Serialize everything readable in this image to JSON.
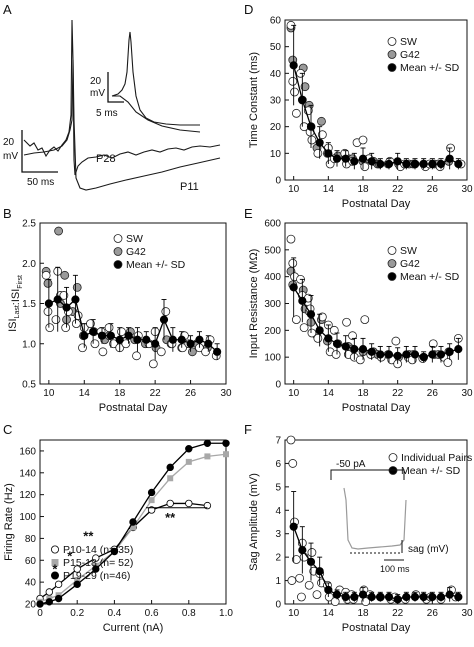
{
  "panel_letters": {
    "A": "A",
    "B": "B",
    "C": "C",
    "D": "D",
    "E": "E",
    "F": "F"
  },
  "colors": {
    "sw": "#ffffff",
    "g42": "#9a9a9a",
    "mean": "#000000",
    "p15": "#a8a8a8",
    "trace": "#1a1a1a"
  },
  "panel_a": {
    "scale_main_v": "20",
    "scale_main_v_unit": "mV",
    "scale_main_t": "50 ms",
    "scale_inset_v": "20",
    "scale_inset_v_unit": "mV",
    "scale_inset_t": "5 ms",
    "label_p28": "P28",
    "label_p11": "P11"
  },
  "panel_f_inset": {
    "current": "-50 pA",
    "sag": "sag (mV)",
    "time": "100 ms"
  },
  "chart_data": [
    {
      "id": "B",
      "type": "scatter",
      "xlabel": "Postnatal Day",
      "ylabel_main": "ISI",
      "ylabel_sub1": "Last",
      "ylabel_mid": ":ISI",
      "ylabel_sub2": "First",
      "xlim": [
        9,
        30
      ],
      "ylim": [
        0.5,
        2.5
      ],
      "xticks": [
        10,
        14,
        18,
        22,
        26,
        30
      ],
      "yticks": [
        0.5,
        1.0,
        1.5,
        2.0,
        2.5
      ],
      "yticklabels": [
        "0.5",
        "1.0",
        "1.5",
        "2.0",
        "2.5"
      ],
      "legend": [
        "SW",
        "G42",
        "Mean +/- SD"
      ],
      "mean": {
        "x": [
          10,
          11,
          12,
          13,
          14,
          15,
          16,
          17,
          18,
          19,
          20,
          21,
          22,
          23,
          24,
          25,
          26,
          27,
          28,
          29
        ],
        "y": [
          1.5,
          1.55,
          1.45,
          1.55,
          1.1,
          1.15,
          1.1,
          1.1,
          1.05,
          1.1,
          1.05,
          1.05,
          1.0,
          1.3,
          1.05,
          1.05,
          1.0,
          1.05,
          1.0,
          0.9
        ],
        "sd": [
          0.3,
          0.4,
          0.25,
          0.3,
          0.15,
          0.15,
          0.1,
          0.15,
          0.15,
          0.1,
          0.15,
          0.1,
          0.2,
          0.25,
          0.15,
          0.1,
          0.1,
          0.1,
          0.1,
          0.1
        ]
      },
      "sw": {
        "x": [
          10,
          10,
          10,
          11,
          11,
          11,
          12,
          12,
          12,
          13,
          13,
          14,
          14,
          15,
          15,
          16,
          16,
          17,
          17,
          18,
          18,
          19,
          20,
          20,
          21,
          22,
          22,
          23,
          23,
          24,
          25,
          25,
          26,
          27,
          28,
          28,
          29
        ],
        "y": [
          1.85,
          1.4,
          1.2,
          1.6,
          1.3,
          1.9,
          1.4,
          1.6,
          1.2,
          1.25,
          1.35,
          0.95,
          1.2,
          1.0,
          1.25,
          1.15,
          0.9,
          1.0,
          1.2,
          0.95,
          1.15,
          1.0,
          0.85,
          1.1,
          1.0,
          0.75,
          1.15,
          1.4,
          0.9,
          1.0,
          0.95,
          1.1,
          1.0,
          0.95,
          1.05,
          0.9,
          0.85
        ]
      },
      "g42": {
        "x": [
          10,
          10,
          11,
          11,
          12,
          12,
          13,
          13,
          14,
          15,
          16,
          17,
          18,
          19,
          20,
          21,
          22,
          23,
          24,
          25,
          26,
          27,
          28
        ],
        "y": [
          1.9,
          1.75,
          2.4,
          1.5,
          1.85,
          1.3,
          1.7,
          1.4,
          1.1,
          1.15,
          1.05,
          1.1,
          1.0,
          1.15,
          1.05,
          1.0,
          0.95,
          1.05,
          1.0,
          0.95,
          0.9,
          1.0,
          0.95
        ]
      }
    },
    {
      "id": "C",
      "type": "line",
      "xlabel": "Current (nA)",
      "ylabel": "Firing Rate (Hz)",
      "xlim": [
        0,
        1.0
      ],
      "ylim": [
        20,
        170
      ],
      "xticks": [
        0,
        0.2,
        0.4,
        0.6,
        0.8,
        1.0
      ],
      "yticks": [
        20,
        40,
        60,
        80,
        100,
        120,
        140,
        160
      ],
      "xticklabels": [
        "0",
        "0.2",
        "0.4",
        "0.6",
        "0.8",
        "1.0"
      ],
      "yticklabels": [
        "20",
        "40",
        "60",
        "80",
        "100",
        "120",
        "140",
        "160"
      ],
      "annotations": [
        "*",
        "*",
        "**",
        "**"
      ],
      "series": [
        {
          "name": "P10-14 (n= 35)",
          "x": [
            0.0,
            0.05,
            0.1,
            0.2,
            0.3,
            0.4,
            0.5,
            0.6,
            0.7,
            0.8,
            0.9
          ],
          "y": [
            25,
            31,
            38,
            52,
            62,
            70,
            90,
            106,
            112,
            112,
            110
          ]
        },
        {
          "name": "P15-18 (n= 52)",
          "x": [
            0.0,
            0.05,
            0.1,
            0.2,
            0.3,
            0.4,
            0.5,
            0.6,
            0.7,
            0.8,
            0.9,
            1.0
          ],
          "y": [
            22,
            25,
            28,
            42,
            55,
            68,
            90,
            115,
            135,
            150,
            155,
            157
          ]
        },
        {
          "name": "P19-29 (n=46)",
          "x": [
            0.0,
            0.05,
            0.1,
            0.2,
            0.3,
            0.4,
            0.5,
            0.6,
            0.7,
            0.8,
            0.9,
            1.0
          ],
          "y": [
            20,
            22,
            25,
            38,
            52,
            68,
            95,
            122,
            145,
            162,
            167,
            167
          ]
        }
      ]
    },
    {
      "id": "D",
      "type": "scatter",
      "xlabel": "Postnatal Day",
      "ylabel": "Time Constant (ms)",
      "xlim": [
        9,
        30
      ],
      "ylim": [
        0,
        60
      ],
      "xticks": [
        10,
        14,
        18,
        22,
        26,
        30
      ],
      "yticks": [
        0,
        10,
        20,
        30,
        40,
        50,
        60
      ],
      "yticklabels": [
        "0",
        "10",
        "20",
        "30",
        "40",
        "50",
        "60"
      ],
      "legend": [
        "SW",
        "G42",
        "Mean +/- SD"
      ],
      "mean": {
        "x": [
          10,
          11,
          12,
          13,
          14,
          15,
          16,
          17,
          18,
          19,
          20,
          21,
          22,
          23,
          24,
          25,
          26,
          27,
          28,
          29
        ],
        "y": [
          43,
          30,
          20,
          14,
          10,
          8,
          8,
          7,
          8,
          7,
          6,
          6,
          7,
          6,
          6,
          6,
          6,
          6,
          8,
          6
        ],
        "sd": [
          15,
          10,
          8,
          6,
          4,
          3,
          3,
          3,
          4,
          3,
          2,
          2,
          3,
          2,
          2,
          2,
          2,
          2,
          4,
          2
        ]
      },
      "sw": {
        "x": [
          10,
          10,
          10,
          10,
          11,
          11,
          11,
          12,
          12,
          12,
          13,
          13,
          14,
          14,
          15,
          16,
          16,
          17,
          17,
          18,
          18,
          19,
          20,
          21,
          22,
          23,
          24,
          25,
          26,
          27,
          28,
          29
        ],
        "y": [
          58,
          37,
          33,
          25,
          40,
          30,
          20,
          26,
          18,
          15,
          17,
          10,
          12,
          6,
          8,
          10,
          6,
          14,
          7,
          15,
          5,
          8,
          6,
          7,
          5,
          6,
          6,
          5,
          6,
          5,
          12,
          6
        ]
      },
      "g42": {
        "x": [
          10,
          10,
          11,
          11,
          12,
          12,
          13,
          13,
          14,
          15,
          16,
          17,
          18,
          19,
          20,
          21,
          22,
          23,
          24,
          25,
          26,
          27,
          28
        ],
        "y": [
          57,
          45,
          42,
          35,
          28,
          20,
          22,
          12,
          10,
          9,
          8,
          8,
          7,
          7,
          6,
          6,
          6,
          6,
          6,
          6,
          6,
          6,
          7
        ]
      }
    },
    {
      "id": "E",
      "type": "scatter",
      "xlabel": "Postnatal Day",
      "ylabel": "Input Resistance (MΩ)",
      "xlim": [
        9,
        30
      ],
      "ylim": [
        0,
        600
      ],
      "xticks": [
        10,
        14,
        18,
        22,
        26,
        30
      ],
      "yticks": [
        0,
        100,
        200,
        300,
        400,
        500,
        600
      ],
      "yticklabels": [
        "0",
        "100",
        "200",
        "300",
        "400",
        "500",
        "600"
      ],
      "legend": [
        "SW",
        "G42",
        "Mean +/- SD"
      ],
      "mean": {
        "x": [
          10,
          11,
          12,
          13,
          14,
          15,
          16,
          17,
          18,
          19,
          20,
          21,
          22,
          23,
          24,
          25,
          26,
          27,
          28,
          29
        ],
        "y": [
          360,
          310,
          260,
          200,
          170,
          150,
          140,
          130,
          130,
          120,
          110,
          110,
          105,
          110,
          110,
          100,
          110,
          110,
          120,
          130
        ],
        "sd": [
          110,
          80,
          70,
          60,
          50,
          40,
          40,
          40,
          40,
          30,
          30,
          30,
          30,
          30,
          30,
          20,
          30,
          30,
          30,
          40
        ]
      },
      "sw": {
        "x": [
          10,
          10,
          10,
          10,
          11,
          11,
          11,
          12,
          12,
          12,
          13,
          13,
          14,
          14,
          15,
          15,
          16,
          16,
          17,
          17,
          18,
          18,
          19,
          20,
          21,
          22,
          22,
          23,
          24,
          25,
          26,
          27,
          28,
          29
        ],
        "y": [
          540,
          450,
          400,
          240,
          390,
          330,
          210,
          320,
          280,
          190,
          250,
          170,
          220,
          120,
          200,
          110,
          230,
          110,
          180,
          100,
          240,
          90,
          110,
          100,
          90,
          160,
          75,
          100,
          90,
          95,
          150,
          100,
          80,
          170
        ]
      },
      "g42": {
        "x": [
          10,
          10,
          11,
          11,
          12,
          12,
          13,
          13,
          14,
          15,
          16,
          17,
          18,
          19,
          20,
          21,
          22,
          23,
          24,
          25,
          26,
          27,
          28
        ],
        "y": [
          420,
          370,
          350,
          280,
          270,
          230,
          240,
          180,
          160,
          150,
          140,
          130,
          120,
          120,
          110,
          110,
          100,
          110,
          110,
          100,
          110,
          110,
          120
        ]
      }
    },
    {
      "id": "F",
      "type": "scatter",
      "xlabel": "Postnatal Day",
      "ylabel": "Sag Amplitude (mV)",
      "xlim": [
        9,
        30
      ],
      "ylim": [
        0,
        7
      ],
      "xticks": [
        10,
        14,
        18,
        22,
        26,
        30
      ],
      "yticks": [
        0,
        1,
        2,
        3,
        4,
        5,
        6,
        7
      ],
      "yticklabels": [
        "0",
        "1",
        "2",
        "3",
        "4",
        "5",
        "6",
        "7"
      ],
      "legend": [
        "Individual Pairs",
        "Mean +/- SD"
      ],
      "mean": {
        "x": [
          10,
          11,
          12,
          13,
          14,
          15,
          16,
          17,
          18,
          19,
          20,
          21,
          22,
          23,
          24,
          25,
          26,
          27,
          28,
          29
        ],
        "y": [
          3.3,
          2.3,
          1.8,
          1.4,
          0.6,
          0.4,
          0.3,
          0.3,
          0.4,
          0.3,
          0.3,
          0.3,
          0.2,
          0.3,
          0.3,
          0.3,
          0.3,
          0.3,
          0.4,
          0.3
        ],
        "sd": [
          1.5,
          1.0,
          0.8,
          0.6,
          0.3,
          0.2,
          0.2,
          0.2,
          0.3,
          0.2,
          0.2,
          0.2,
          0.2,
          0.2,
          0.2,
          0.2,
          0.2,
          0.2,
          0.3,
          0.2
        ]
      },
      "pairs": {
        "x": [
          10,
          10,
          10,
          10,
          10,
          11,
          11,
          11,
          11,
          12,
          12,
          12,
          13,
          13,
          13,
          14,
          14,
          15,
          15,
          16,
          16,
          17,
          17,
          18,
          18,
          19,
          20,
          21,
          22,
          23,
          24,
          25,
          26,
          27,
          28,
          29
        ],
        "y": [
          7.0,
          6.0,
          3.5,
          1.9,
          1.0,
          2.6,
          2.0,
          1.1,
          0.3,
          2.2,
          1.4,
          0.8,
          1.3,
          0.9,
          0.4,
          0.8,
          0.3,
          0.6,
          0.1,
          0.5,
          0.2,
          0.4,
          0.2,
          0.6,
          0.1,
          0.4,
          0.3,
          0.2,
          0.3,
          0.2,
          0.4,
          0.2,
          0.3,
          0.2,
          0.6,
          0.3
        ]
      }
    }
  ]
}
